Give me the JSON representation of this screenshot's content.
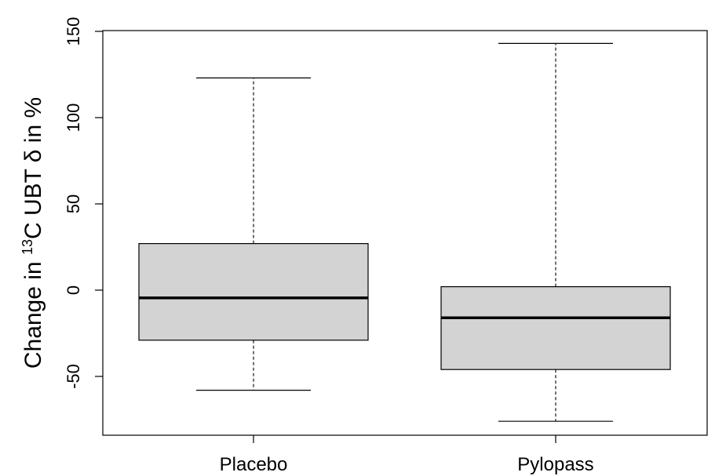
{
  "chart_data": {
    "type": "boxplot",
    "title": "",
    "xlabel": "",
    "ylabel_parts": {
      "before": "Change in ",
      "sup": "13",
      "after": "C UBT δ in %"
    },
    "ylim": [
      -85,
      150
    ],
    "yticks": [
      -50,
      0,
      50,
      100,
      150
    ],
    "ytick_labels": [
      "-50",
      "0",
      "50",
      "100",
      "150"
    ],
    "grid": false,
    "categories": [
      "Placebo",
      "Pylopass"
    ],
    "boxes": [
      {
        "label": "Placebo",
        "whisker_low": -58,
        "q1": -29,
        "median": -4.5,
        "q3": 27,
        "whisker_high": 123
      },
      {
        "label": "Pylopass",
        "whisker_low": -76,
        "q1": -46,
        "median": -16,
        "q3": 2,
        "whisker_high": 143
      }
    ],
    "colors": {
      "box_fill": "#d3d3d3",
      "stroke": "#000000"
    }
  }
}
